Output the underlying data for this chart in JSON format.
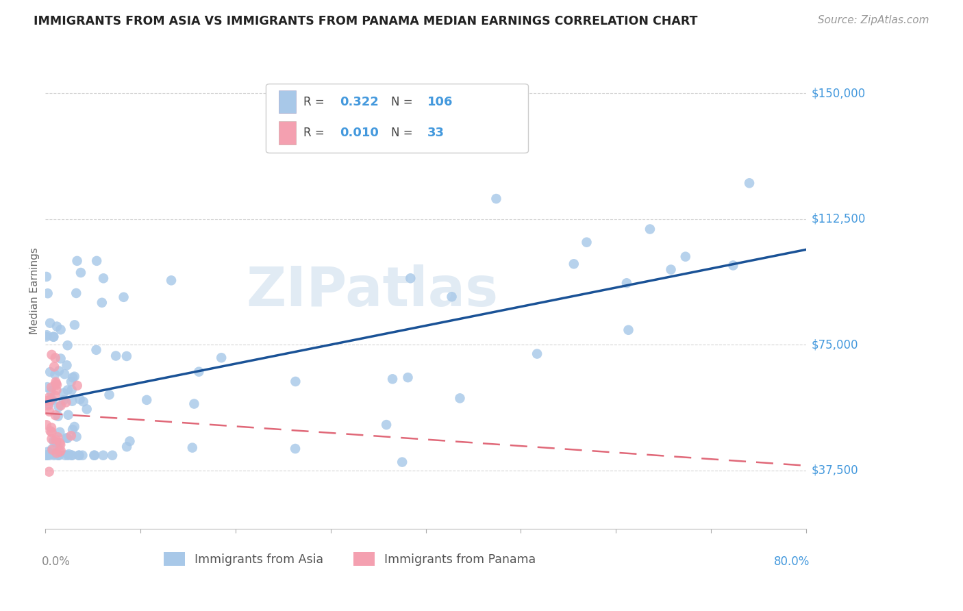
{
  "title": "IMMIGRANTS FROM ASIA VS IMMIGRANTS FROM PANAMA MEDIAN EARNINGS CORRELATION CHART",
  "source": "Source: ZipAtlas.com",
  "ylabel": "Median Earnings",
  "y_ticks": [
    37500,
    75000,
    112500,
    150000
  ],
  "y_tick_labels": [
    "$37,500",
    "$75,000",
    "$112,500",
    "$150,000"
  ],
  "watermark": "ZIPatlas",
  "legend1_label": "Immigrants from Asia",
  "legend2_label": "Immigrants from Panama",
  "R_asia": "0.322",
  "N_asia": "106",
  "R_panama": "0.010",
  "N_panama": "33",
  "color_asia": "#a8c8e8",
  "color_asia_line": "#1a5296",
  "color_panama": "#f4a0b0",
  "color_panama_line": "#e06878",
  "axis_label_color": "#4499dd",
  "background_color": "#ffffff",
  "grid_color": "#cccccc"
}
